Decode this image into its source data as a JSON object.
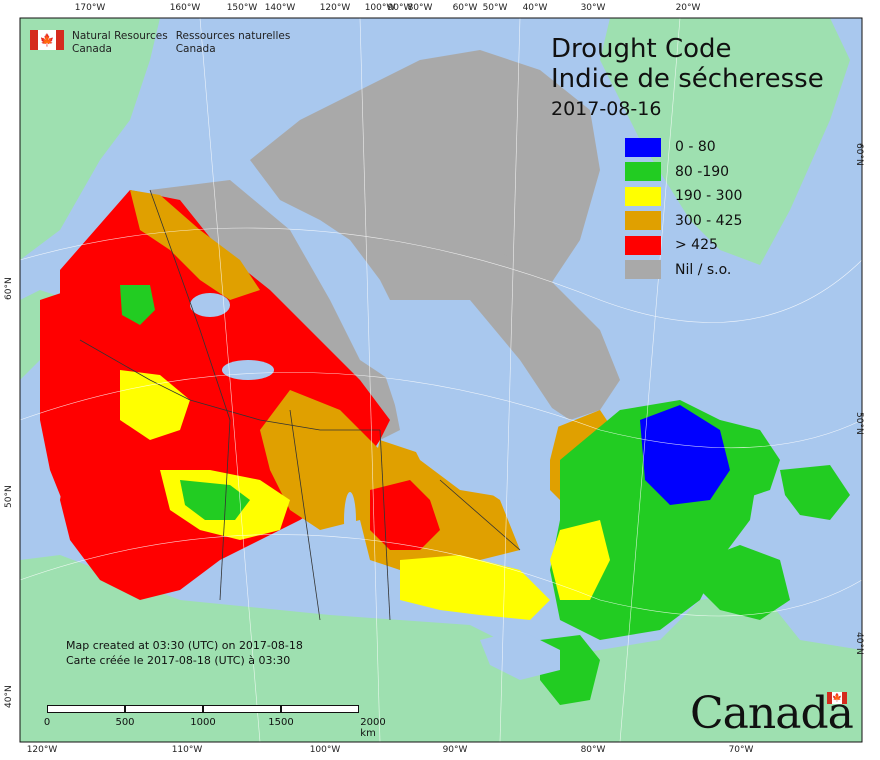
{
  "title": {
    "line1": "Drought Code",
    "line2": "Indice de sécheresse",
    "date": "2017-08-16"
  },
  "agency": {
    "en_line1": "Natural Resources",
    "en_line2": "Canada",
    "fr_line1": "Ressources naturelles",
    "fr_line2": "Canada"
  },
  "legend": [
    {
      "label": "0 - 80",
      "color": "#0000ff"
    },
    {
      "label": "80 -190",
      "color": "#22cc22"
    },
    {
      "label": "190 - 300",
      "color": "#ffff00"
    },
    {
      "label": "300 - 425",
      "color": "#e0a000"
    },
    {
      "label": "> 425",
      "color": "#ff0000"
    },
    {
      "label": "Nil / s.o.",
      "color": "#a9a9a9"
    }
  ],
  "credits": {
    "en": "Map created at 03:30 (UTC) on 2017-08-18",
    "fr": "Carte créée le 2017-08-18 (UTC) à 03:30"
  },
  "scale": {
    "labels": [
      "0",
      "500",
      "1000",
      "1500",
      "2000 km"
    ]
  },
  "graticule": {
    "top": [
      "170°W",
      "160°W",
      "150°W",
      "140°W",
      "120°W",
      "100°W",
      "90°W",
      "80°W",
      "60°W",
      "50°W",
      "40°W",
      "30°W",
      "20°W"
    ],
    "bottom": [
      "120°W",
      "110°W",
      "100°W",
      "90°W",
      "80°W",
      "70°W"
    ],
    "left": [
      "60°N",
      "50°N",
      "40°N"
    ],
    "right": [
      "60°N",
      "50°N",
      "40°N"
    ]
  },
  "wordmark": "Canada",
  "colors": {
    "ocean": "#a9c8ee",
    "land_other": "#9ee0b0",
    "no_data": "#a9a9a9",
    "lake": "#a9c8ee"
  }
}
